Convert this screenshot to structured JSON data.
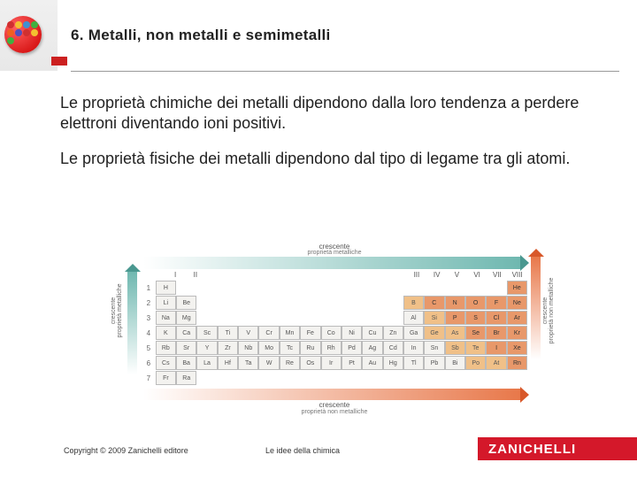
{
  "header": {
    "title": "6. Metalli, non metalli e semimetalli"
  },
  "paragraphs": {
    "p1": "Le proprietà chimiche dei metalli dipendono dalla loro tendenza a perdere elettroni diventando ioni positivi.",
    "p2": "Le proprietà fisiche dei metalli dipendono dal tipo di legame tra gli atomi."
  },
  "chart": {
    "top_word": "crescente",
    "top_sub": "proprietà metalliche",
    "left_word": "crescente",
    "left_sub": "proprietà metalliche",
    "right_word": "crescente",
    "right_sub": "proprietà non metalliche",
    "bot_word": "crescente",
    "bot_sub": "proprietà non metalliche",
    "groups": [
      "I",
      "II",
      "",
      "",
      "",
      "",
      "",
      "",
      "",
      "",
      "",
      "",
      "III",
      "IV",
      "V",
      "VI",
      "VII",
      "VIII"
    ],
    "periods": [
      "1",
      "2",
      "3",
      "4",
      "5",
      "6",
      "7"
    ],
    "rows": [
      [
        {
          "s": "H",
          "c": "m"
        },
        {
          "c": "b"
        },
        {
          "c": "b"
        },
        {
          "c": "b"
        },
        {
          "c": "b"
        },
        {
          "c": "b"
        },
        {
          "c": "b"
        },
        {
          "c": "b"
        },
        {
          "c": "b"
        },
        {
          "c": "b"
        },
        {
          "c": "b"
        },
        {
          "c": "b"
        },
        {
          "c": "b"
        },
        {
          "c": "b"
        },
        {
          "c": "b"
        },
        {
          "c": "b"
        },
        {
          "c": "b"
        },
        {
          "s": "He",
          "c": "n"
        }
      ],
      [
        {
          "s": "Li",
          "c": "m"
        },
        {
          "s": "Be",
          "c": "m"
        },
        {
          "c": "b"
        },
        {
          "c": "b"
        },
        {
          "c": "b"
        },
        {
          "c": "b"
        },
        {
          "c": "b"
        },
        {
          "c": "b"
        },
        {
          "c": "b"
        },
        {
          "c": "b"
        },
        {
          "c": "b"
        },
        {
          "c": "b"
        },
        {
          "s": "B",
          "c": "s"
        },
        {
          "s": "C",
          "c": "n"
        },
        {
          "s": "N",
          "c": "n"
        },
        {
          "s": "O",
          "c": "n"
        },
        {
          "s": "F",
          "c": "n"
        },
        {
          "s": "Ne",
          "c": "n"
        }
      ],
      [
        {
          "s": "Na",
          "c": "m"
        },
        {
          "s": "Mg",
          "c": "m"
        },
        {
          "c": "b"
        },
        {
          "c": "b"
        },
        {
          "c": "b"
        },
        {
          "c": "b"
        },
        {
          "c": "b"
        },
        {
          "c": "b"
        },
        {
          "c": "b"
        },
        {
          "c": "b"
        },
        {
          "c": "b"
        },
        {
          "c": "b"
        },
        {
          "s": "Al",
          "c": "m"
        },
        {
          "s": "Si",
          "c": "s"
        },
        {
          "s": "P",
          "c": "n"
        },
        {
          "s": "S",
          "c": "n"
        },
        {
          "s": "Cl",
          "c": "n"
        },
        {
          "s": "Ar",
          "c": "n"
        }
      ],
      [
        {
          "s": "K",
          "c": "m"
        },
        {
          "s": "Ca",
          "c": "m"
        },
        {
          "s": "Sc",
          "c": "m"
        },
        {
          "s": "Ti",
          "c": "m"
        },
        {
          "s": "V",
          "c": "m"
        },
        {
          "s": "Cr",
          "c": "m"
        },
        {
          "s": "Mn",
          "c": "m"
        },
        {
          "s": "Fe",
          "c": "m"
        },
        {
          "s": "Co",
          "c": "m"
        },
        {
          "s": "Ni",
          "c": "m"
        },
        {
          "s": "Cu",
          "c": "m"
        },
        {
          "s": "Zn",
          "c": "m"
        },
        {
          "s": "Ga",
          "c": "m"
        },
        {
          "s": "Ge",
          "c": "s"
        },
        {
          "s": "As",
          "c": "s"
        },
        {
          "s": "Se",
          "c": "n"
        },
        {
          "s": "Br",
          "c": "n"
        },
        {
          "s": "Kr",
          "c": "n"
        }
      ],
      [
        {
          "s": "Rb",
          "c": "m"
        },
        {
          "s": "Sr",
          "c": "m"
        },
        {
          "s": "Y",
          "c": "m"
        },
        {
          "s": "Zr",
          "c": "m"
        },
        {
          "s": "Nb",
          "c": "m"
        },
        {
          "s": "Mo",
          "c": "m"
        },
        {
          "s": "Tc",
          "c": "m"
        },
        {
          "s": "Ru",
          "c": "m"
        },
        {
          "s": "Rh",
          "c": "m"
        },
        {
          "s": "Pd",
          "c": "m"
        },
        {
          "s": "Ag",
          "c": "m"
        },
        {
          "s": "Cd",
          "c": "m"
        },
        {
          "s": "In",
          "c": "m"
        },
        {
          "s": "Sn",
          "c": "m"
        },
        {
          "s": "Sb",
          "c": "s"
        },
        {
          "s": "Te",
          "c": "s"
        },
        {
          "s": "I",
          "c": "n"
        },
        {
          "s": "Xe",
          "c": "n"
        }
      ],
      [
        {
          "s": "Cs",
          "c": "m"
        },
        {
          "s": "Ba",
          "c": "m"
        },
        {
          "s": "La",
          "c": "m"
        },
        {
          "s": "Hf",
          "c": "m"
        },
        {
          "s": "Ta",
          "c": "m"
        },
        {
          "s": "W",
          "c": "m"
        },
        {
          "s": "Re",
          "c": "m"
        },
        {
          "s": "Os",
          "c": "m"
        },
        {
          "s": "Ir",
          "c": "m"
        },
        {
          "s": "Pt",
          "c": "m"
        },
        {
          "s": "Au",
          "c": "m"
        },
        {
          "s": "Hg",
          "c": "m"
        },
        {
          "s": "Tl",
          "c": "m"
        },
        {
          "s": "Pb",
          "c": "m"
        },
        {
          "s": "Bi",
          "c": "m"
        },
        {
          "s": "Po",
          "c": "s"
        },
        {
          "s": "At",
          "c": "s"
        },
        {
          "s": "Rn",
          "c": "n"
        }
      ],
      [
        {
          "s": "Fr",
          "c": "m"
        },
        {
          "s": "Ra",
          "c": "m"
        },
        {
          "c": "b"
        },
        {
          "c": "b"
        },
        {
          "c": "b"
        },
        {
          "c": "b"
        },
        {
          "c": "b"
        },
        {
          "c": "b"
        },
        {
          "c": "b"
        },
        {
          "c": "b"
        },
        {
          "c": "b"
        },
        {
          "c": "b"
        },
        {
          "c": "b"
        },
        {
          "c": "b"
        },
        {
          "c": "b"
        },
        {
          "c": "b"
        },
        {
          "c": "b"
        },
        {
          "c": "b"
        }
      ]
    ]
  },
  "footer": {
    "copyright": "Copyright © 2009 Zanichelli editore",
    "center": "Le idee della chimica",
    "brand": "ZANICHELLI"
  },
  "colors": {
    "logo_dots": [
      "#d03030",
      "#f4c030",
      "#4090d0",
      "#40b040",
      "#f06020",
      "#5050c0",
      "#d03030",
      "#f4c030",
      "#40b040"
    ]
  }
}
